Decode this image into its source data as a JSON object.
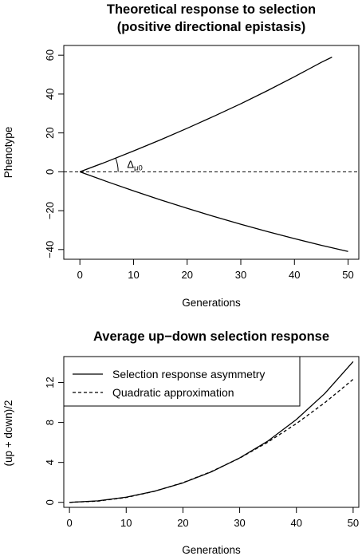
{
  "chart_data": [
    {
      "type": "line",
      "title": [
        "Theoretical response to selection",
        "(positive directional epistasis)"
      ],
      "xlabel": "Generations",
      "ylabel": "Phenotype",
      "xlim": [
        -3,
        52
      ],
      "ylim": [
        -45,
        65
      ],
      "xticks": [
        0,
        10,
        20,
        30,
        40,
        50
      ],
      "yticks": [
        -40,
        -20,
        0,
        20,
        40,
        60
      ],
      "xtick_labels": [
        "0",
        "10",
        "20",
        "30",
        "40",
        "50"
      ],
      "ytick_labels": [
        "−40",
        "−20",
        "0",
        "20",
        "40",
        "60"
      ],
      "annotation": {
        "main": "Δ",
        "sub": "μ0",
        "x": 8.5,
        "y": 3.6
      },
      "reference_line": {
        "y": 0,
        "style": "dashed"
      },
      "series": [
        {
          "style": "solid",
          "x": [
            0,
            5,
            10,
            15,
            20,
            25,
            30,
            35,
            40,
            45,
            47
          ],
          "y": [
            0,
            5.2,
            10.7,
            16.4,
            22.4,
            28.6,
            35.0,
            41.8,
            48.9,
            56.3,
            59.0
          ]
        },
        {
          "style": "solid",
          "x": [
            0,
            5,
            10,
            15,
            20,
            25,
            30,
            35,
            40,
            45,
            50
          ],
          "y": [
            0,
            -5.0,
            -9.8,
            -14.4,
            -18.8,
            -23.0,
            -27.0,
            -30.8,
            -34.4,
            -37.8,
            -41.0
          ]
        }
      ]
    },
    {
      "type": "line",
      "title": "Average up−down selection response",
      "xlabel": "Generations",
      "ylabel": "(up + down)/2",
      "xlim": [
        -1,
        51
      ],
      "ylim": [
        -0.5,
        14.6
      ],
      "xticks": [
        0,
        10,
        20,
        30,
        40,
        50
      ],
      "yticks": [
        0,
        4,
        8,
        12
      ],
      "xtick_labels": [
        "0",
        "10",
        "20",
        "30",
        "40",
        "50"
      ],
      "ytick_labels": [
        "0",
        "4",
        "8",
        "12"
      ],
      "legend": {
        "placement": "top-left"
      },
      "series": [
        {
          "name": "Selection response asymmetry",
          "style": "solid",
          "x": [
            0,
            5,
            10,
            15,
            20,
            25,
            30,
            35,
            40,
            45,
            50
          ],
          "y": [
            0,
            0.15,
            0.52,
            1.12,
            1.95,
            3.05,
            4.45,
            6.15,
            8.3,
            10.9,
            14.1
          ]
        },
        {
          "name": "Quadratic approximation",
          "style": "dashed",
          "x": [
            0,
            5,
            10,
            15,
            20,
            25,
            30,
            35,
            40,
            45,
            50
          ],
          "y": [
            0,
            0.12,
            0.49,
            1.11,
            1.97,
            3.08,
            4.43,
            6.04,
            7.89,
            9.98,
            12.32
          ]
        }
      ]
    }
  ]
}
